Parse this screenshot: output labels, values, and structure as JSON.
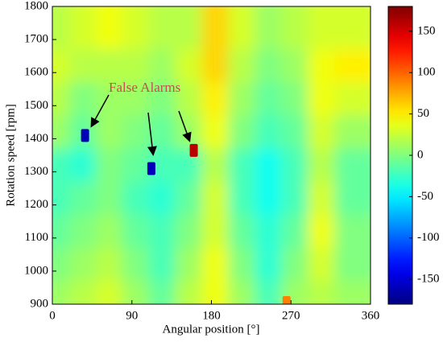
{
  "chart_data": {
    "type": "heatmap",
    "xlabel": "Angular position [°]",
    "ylabel": "Rotation speed [rpm]",
    "annotation": "False Alarms",
    "xlim": [
      0,
      360
    ],
    "xticks": [
      0,
      90,
      180,
      270,
      360
    ],
    "ylim": [
      900,
      1800
    ],
    "yticks": [
      900,
      1000,
      1100,
      1200,
      1300,
      1400,
      1500,
      1600,
      1700,
      1800
    ],
    "clim": [
      -180,
      180
    ],
    "cticks": [
      -150,
      -100,
      -50,
      0,
      50,
      100,
      150
    ],
    "colormap": "jet",
    "x": [
      15,
      45,
      75,
      105,
      135,
      165,
      195,
      225,
      255,
      285,
      315,
      345
    ],
    "y": [
      950,
      1050,
      1150,
      1250,
      1350,
      1450,
      1550,
      1650,
      1750
    ],
    "z": [
      [
        10,
        20,
        30,
        10,
        -10,
        20,
        40,
        10,
        -20,
        10,
        20,
        10
      ],
      [
        0,
        10,
        20,
        0,
        -20,
        10,
        40,
        0,
        -30,
        0,
        30,
        0
      ],
      [
        -10,
        0,
        10,
        -10,
        -20,
        0,
        30,
        -10,
        -30,
        -10,
        40,
        0
      ],
      [
        -20,
        -10,
        0,
        -20,
        -30,
        -10,
        30,
        -20,
        -40,
        -20,
        30,
        -10
      ],
      [
        -20,
        -30,
        0,
        -10,
        -20,
        -20,
        20,
        -20,
        -40,
        -20,
        20,
        -10
      ],
      [
        10,
        -10,
        10,
        0,
        -10,
        10,
        40,
        0,
        -20,
        -10,
        30,
        10
      ],
      [
        20,
        0,
        10,
        10,
        0,
        20,
        50,
        10,
        -10,
        0,
        40,
        30
      ],
      [
        30,
        20,
        20,
        20,
        10,
        30,
        60,
        20,
        0,
        10,
        40,
        50
      ],
      [
        20,
        30,
        40,
        30,
        20,
        20,
        60,
        30,
        10,
        20,
        30,
        30
      ]
    ],
    "hotspots": [
      {
        "x": 37,
        "y": 1410,
        "value": -160
      },
      {
        "x": 112,
        "y": 1310,
        "value": -160
      },
      {
        "x": 160,
        "y": 1365,
        "value": 160
      },
      {
        "x": 265,
        "y": 905,
        "value": 90
      }
    ]
  }
}
